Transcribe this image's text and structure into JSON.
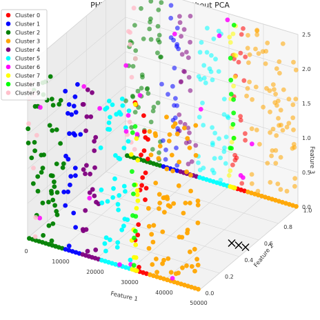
{
  "chart_data": {
    "type": "scatter",
    "projection": "3d",
    "title": "PHY K-means Clustering without PCA",
    "xlabel": "Feature 1",
    "ylabel": "Feature 2",
    "zlabel": "Feature 3",
    "xlim": [
      0,
      50000
    ],
    "ylim": [
      0.0,
      1.0
    ],
    "zlim": [
      0.0,
      2.5
    ],
    "x_ticks": [
      "0",
      "10000",
      "20000",
      "30000",
      "40000",
      "50000"
    ],
    "y_ticks": [
      "0.0",
      "0.2",
      "0.4",
      "0.6",
      "0.8",
      "1.0"
    ],
    "z_ticks": [
      "0.0",
      "0.5",
      "1.0",
      "1.5",
      "2.0",
      "2.5"
    ],
    "grid": true,
    "legend_position": "top-left",
    "series": [
      {
        "name": "Cluster 0",
        "color": "#ff0000",
        "x_range": [
          31000,
          35000
        ]
      },
      {
        "name": "Cluster 1",
        "color": "#0000ff",
        "x_range": [
          10500,
          15500
        ]
      },
      {
        "name": "Cluster 2",
        "color": "#008000",
        "x_range": [
          0,
          10500
        ]
      },
      {
        "name": "Cluster 3",
        "color": "#ffa500",
        "x_range": [
          35000,
          50000
        ]
      },
      {
        "name": "Cluster 4",
        "color": "#800080",
        "x_range": [
          15500,
          21000
        ]
      },
      {
        "name": "Cluster 5",
        "color": "#00ffff",
        "x_range": [
          21000,
          30000
        ]
      },
      {
        "name": "Cluster 6",
        "color": "#ff00ff",
        "x_range": [
          0,
          50000
        ]
      },
      {
        "name": "Cluster 7",
        "color": "#ffff00",
        "x_range": [
          30000,
          32000
        ]
      },
      {
        "name": "Cluster 8",
        "color": "#00ff00",
        "x_range": [
          30000,
          31500
        ]
      },
      {
        "name": "Cluster 9",
        "color": "#ffc0cb",
        "x_range": [
          0,
          3000
        ]
      }
    ],
    "y_levels": [
      0.0,
      1.0
    ],
    "z_range": [
      0.0,
      2.5
    ],
    "centroids": [
      {
        "x": 45000,
        "y": 0.5,
        "z": 0.0
      },
      {
        "x": 47000,
        "y": 0.5,
        "z": 0.0
      },
      {
        "x": 49000,
        "y": 0.5,
        "z": 0.0
      }
    ],
    "centroid_marker": "x"
  }
}
